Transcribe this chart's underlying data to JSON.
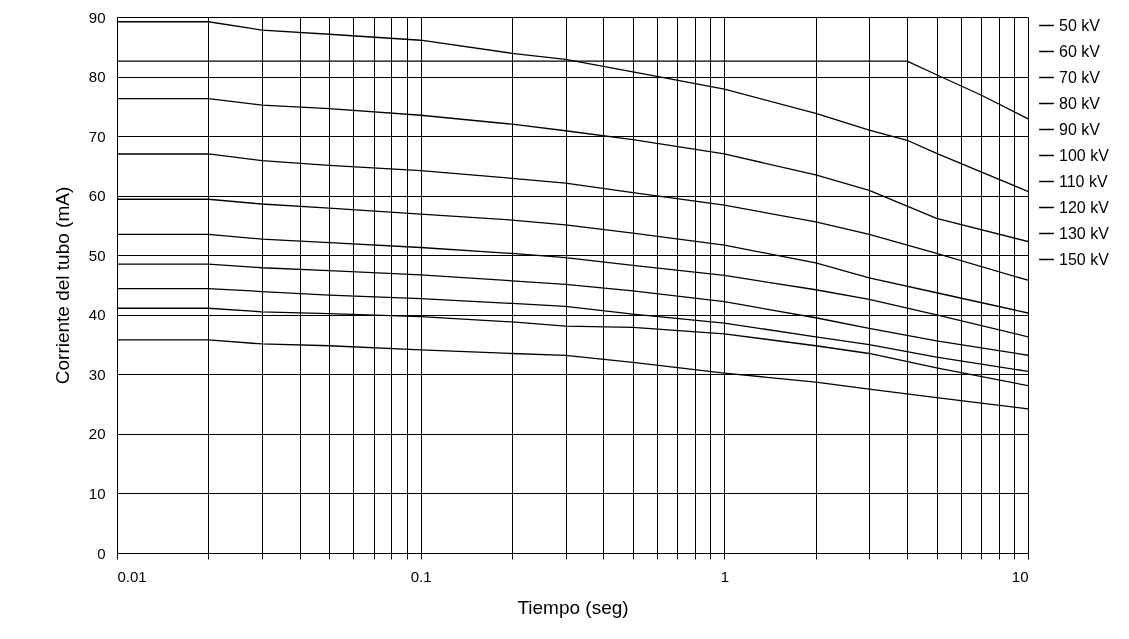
{
  "chart_data": {
    "type": "line",
    "xlabel": "Tiempo (seg)",
    "ylabel": "Corriente del tubo (mA)",
    "log": "x",
    "grid": true,
    "legend": "right",
    "marker": "none",
    "line_style": "solid",
    "xlim": [
      0.01,
      10
    ],
    "ylim": [
      0,
      90
    ],
    "xticks": [
      0.01,
      {
        "value": 0.02,
        "label": null
      },
      {
        "value": 0.03,
        "label": null
      },
      {
        "value": 0.04,
        "label": null
      },
      {
        "value": 0.05,
        "label": null
      },
      {
        "value": 0.06,
        "label": null
      },
      {
        "value": 0.07,
        "label": null
      },
      {
        "value": 0.08,
        "label": null
      },
      {
        "value": 0.09,
        "label": null
      },
      0.1,
      {
        "value": 0.2,
        "label": null
      },
      {
        "value": 0.3,
        "label": null
      },
      {
        "value": 0.4,
        "label": null
      },
      {
        "value": 0.5,
        "label": null
      },
      {
        "value": 0.6,
        "label": null
      },
      {
        "value": 0.7,
        "label": null
      },
      {
        "value": 0.8,
        "label": null
      },
      {
        "value": 0.9,
        "label": null
      },
      1,
      {
        "value": 2,
        "label": null
      },
      {
        "value": 3,
        "label": null
      },
      {
        "value": 4,
        "label": null
      },
      {
        "value": 5,
        "label": null
      },
      {
        "value": 6,
        "label": null
      },
      {
        "value": 7,
        "label": null
      },
      {
        "value": 8,
        "label": null
      },
      {
        "value": 9,
        "label": null
      },
      10
    ],
    "yticks": [
      0,
      10,
      20,
      30,
      40,
      50,
      60,
      70,
      80,
      90
    ],
    "x": [
      0.01,
      0.02,
      0.03,
      0.05,
      0.1,
      0.2,
      0.3,
      0.5,
      1,
      2,
      3,
      5,
      10
    ],
    "series": [
      {
        "name": "50 kV",
        "color": "#000000",
        "x": [
          0.01,
          0.02,
          0.03,
          0.05,
          0.1,
          0.2,
          0.3,
          0.5,
          1,
          2,
          3,
          4,
          5,
          10
        ],
        "values": [
          89.2,
          89.2,
          87.8,
          87.1,
          86.1,
          83.9,
          82.9,
          80.8,
          77.9,
          73.8,
          71.0,
          69.3,
          67.1,
          60.7
        ]
      },
      {
        "name": "60 kV",
        "color": "#000000",
        "x": [
          0.01,
          4,
          5,
          7,
          10
        ],
        "values": [
          82.6,
          82.6,
          80.3,
          76.9,
          72.9
        ]
      },
      {
        "name": "70 kV",
        "color": "#000000",
        "values": [
          76.3,
          76.3,
          75.2,
          74.6,
          73.5,
          72.0,
          70.9,
          69.4,
          67.0,
          63.5,
          60.9,
          56.2,
          52.3
        ]
      },
      {
        "name": "80 kV",
        "color": "#000000",
        "values": [
          67.0,
          67.0,
          65.9,
          65.1,
          64.2,
          62.9,
          62.1,
          60.5,
          58.4,
          55.6,
          53.5,
          50.3,
          45.8
        ]
      },
      {
        "name": "90 kV",
        "color": "#000000",
        "values": [
          59.4,
          59.4,
          58.6,
          57.9,
          56.9,
          55.9,
          55.1,
          53.7,
          51.7,
          48.7,
          46.2,
          43.7,
          40.3
        ]
      },
      {
        "name": "100 kV",
        "color": "#000000",
        "values": [
          53.5,
          53.5,
          52.7,
          52.1,
          51.3,
          50.3,
          49.6,
          48.3,
          46.6,
          44.2,
          42.6,
          40.0,
          36.3
        ]
      },
      {
        "name": "110 kV",
        "color": "#000000",
        "values": [
          48.5,
          48.5,
          47.9,
          47.4,
          46.7,
          45.7,
          45.1,
          44.0,
          42.2,
          39.5,
          37.7,
          35.6,
          33.2
        ]
      },
      {
        "name": "120 kV",
        "color": "#000000",
        "values": [
          44.4,
          44.4,
          43.9,
          43.3,
          42.7,
          41.9,
          41.4,
          40.1,
          38.6,
          36.3,
          35.0,
          32.9,
          30.5
        ]
      },
      {
        "name": "130 kV",
        "color": "#000000",
        "values": [
          41.1,
          41.1,
          40.5,
          40.2,
          39.7,
          38.8,
          38.1,
          37.9,
          36.8,
          34.8,
          33.5,
          31.1,
          28.1
        ]
      },
      {
        "name": "150 kV",
        "color": "#000000",
        "values": [
          35.8,
          35.8,
          35.1,
          34.8,
          34.1,
          33.5,
          33.2,
          32.0,
          30.2,
          28.7,
          27.5,
          26.1,
          24.2
        ]
      }
    ]
  }
}
